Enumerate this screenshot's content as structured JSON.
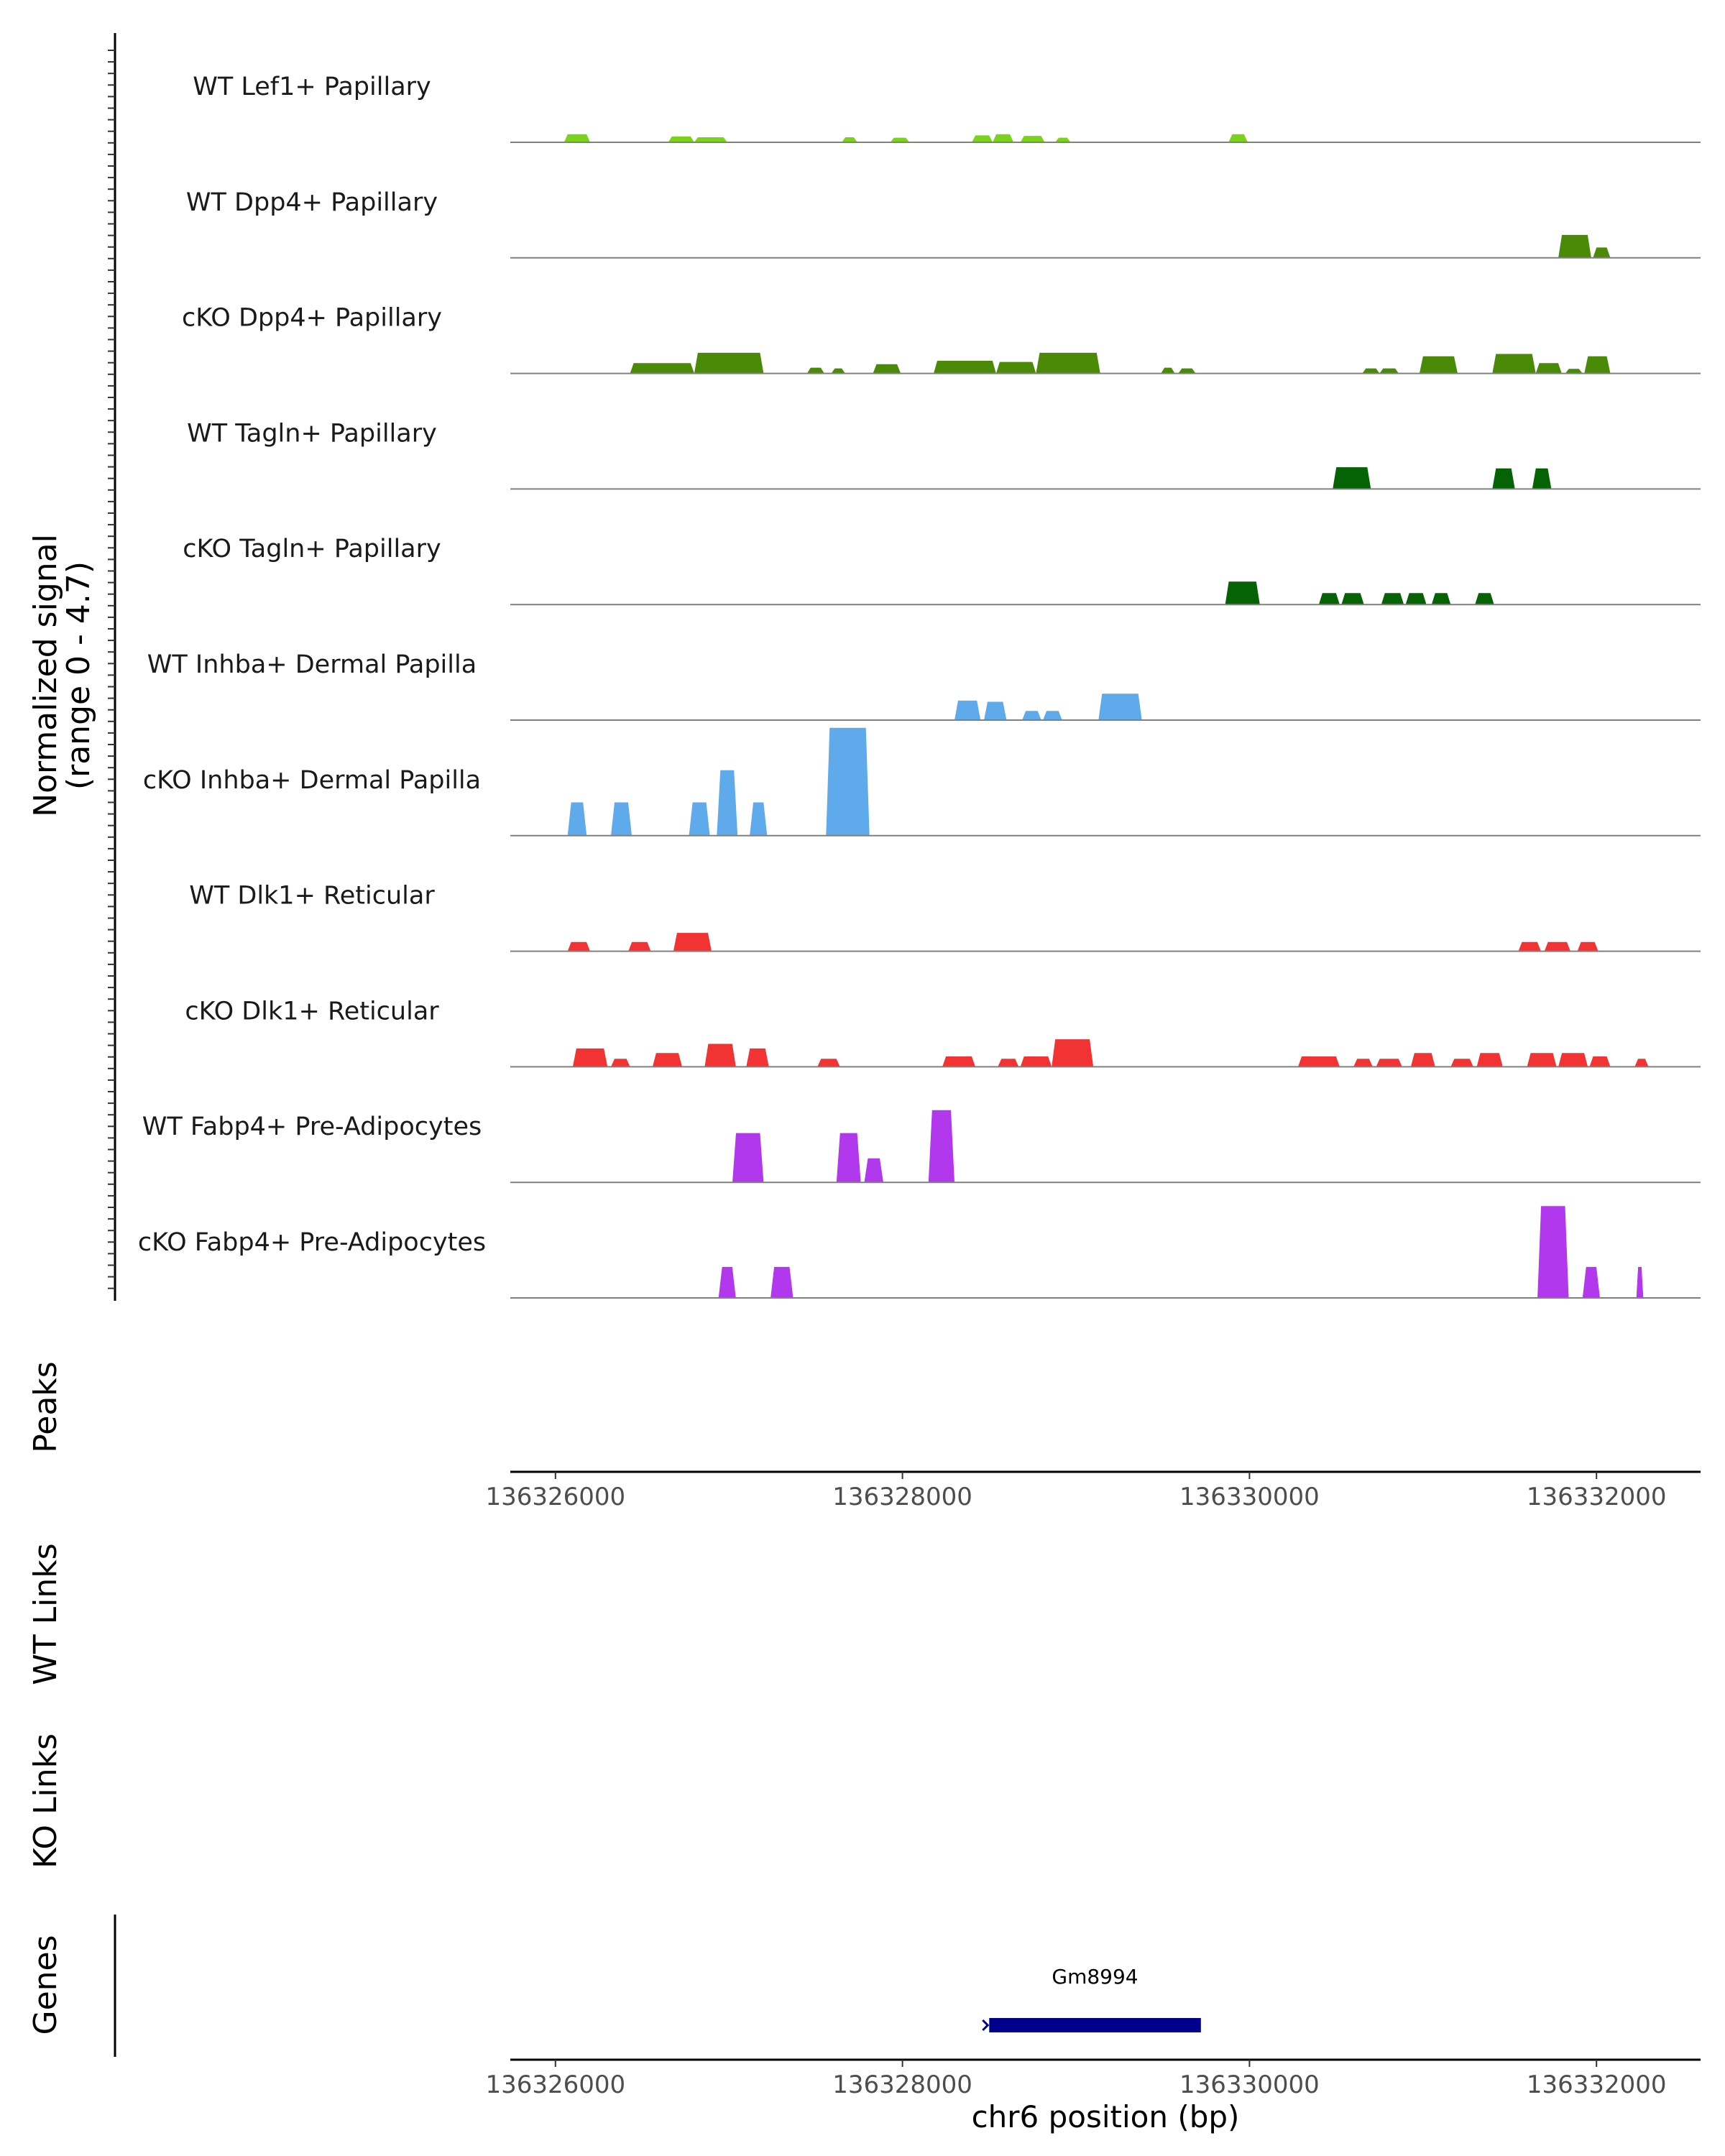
{
  "chart_data": {
    "type": "area",
    "title": "",
    "ylabel": "Normalized signal",
    "ylabel_range": "(range 0 - 4.7)",
    "ylim": [
      0,
      4.7
    ],
    "xlim": [
      136325740,
      136332600
    ],
    "xlabel": "chr6 position (bp)",
    "xticks": [
      136326000,
      136328000,
      136330000,
      136332000
    ],
    "xtick_labels": [
      "136326000",
      "136328000",
      "136330000",
      "136332000"
    ],
    "tracks": [
      {
        "name": "WT Lef1+ Papillary",
        "color": "#7ad21a",
        "peaks": [
          [
            136326050,
            136326200,
            0.35
          ],
          [
            136326650,
            136326800,
            0.25
          ],
          [
            136326800,
            136326990,
            0.22
          ],
          [
            136327650,
            136327740,
            0.22
          ],
          [
            136327930,
            136328040,
            0.2
          ],
          [
            136328400,
            136328520,
            0.3
          ],
          [
            136328520,
            136328640,
            0.35
          ],
          [
            136328680,
            136328820,
            0.28
          ],
          [
            136328880,
            136328970,
            0.2
          ],
          [
            136329880,
            136329990,
            0.35
          ]
        ]
      },
      {
        "name": "WT Dpp4+ Papillary",
        "color": "#4a8a06",
        "peaks": [
          [
            136331780,
            136331970,
            1.0
          ],
          [
            136331980,
            136332080,
            0.45
          ]
        ]
      },
      {
        "name": "cKO Dpp4+ Papillary",
        "color": "#4a8a06",
        "peaks": [
          [
            136326430,
            136326800,
            0.45
          ],
          [
            136326800,
            136327200,
            0.9
          ],
          [
            136327450,
            136327550,
            0.25
          ],
          [
            136327590,
            136327670,
            0.22
          ],
          [
            136327830,
            136327990,
            0.4
          ],
          [
            136328180,
            136328540,
            0.55
          ],
          [
            136328540,
            136328770,
            0.5
          ],
          [
            136328770,
            136329140,
            0.9
          ],
          [
            136329490,
            136329570,
            0.25
          ],
          [
            136329590,
            136329690,
            0.22
          ],
          [
            136330650,
            136330750,
            0.22
          ],
          [
            136330750,
            136330860,
            0.22
          ],
          [
            136330980,
            136331200,
            0.75
          ],
          [
            136331400,
            136331650,
            0.85
          ],
          [
            136331650,
            136331800,
            0.45
          ],
          [
            136331820,
            136331920,
            0.2
          ],
          [
            136331930,
            136332080,
            0.75
          ]
        ]
      },
      {
        "name": "WT Tagln+ Papillary",
        "color": "#056205",
        "peaks": [
          [
            136330480,
            136330700,
            0.95
          ],
          [
            136331400,
            136331530,
            0.9
          ],
          [
            136331630,
            136331740,
            0.9
          ]
        ]
      },
      {
        "name": "cKO Tagln+ Papillary",
        "color": "#056205",
        "peaks": [
          [
            136329860,
            136330060,
            1.0
          ],
          [
            136330400,
            136330520,
            0.5
          ],
          [
            136330530,
            136330660,
            0.5
          ],
          [
            136330760,
            136330890,
            0.5
          ],
          [
            136330900,
            136331020,
            0.5
          ],
          [
            136331050,
            136331160,
            0.5
          ],
          [
            136331300,
            136331410,
            0.5
          ]
        ]
      },
      {
        "name": "WT Inhba+ Dermal Papilla",
        "color": "#5eaaeb",
        "peaks": [
          [
            136328300,
            136328450,
            0.85
          ],
          [
            136328470,
            136328600,
            0.8
          ],
          [
            136328690,
            136328800,
            0.4
          ],
          [
            136328810,
            136328920,
            0.4
          ],
          [
            136329130,
            136329380,
            1.15
          ]
        ]
      },
      {
        "name": "cKO Inhba+ Dermal Papilla",
        "color": "#5eaaeb",
        "peaks": [
          [
            136326070,
            136326180,
            1.45
          ],
          [
            136326320,
            136326440,
            1.45
          ],
          [
            136326770,
            136326890,
            1.45
          ],
          [
            136326930,
            136327050,
            2.85
          ],
          [
            136327120,
            136327220,
            1.45
          ],
          [
            136327560,
            136327810,
            4.7
          ]
        ]
      },
      {
        "name": "WT Dlk1+ Reticular",
        "color": "#f23333",
        "peaks": [
          [
            136326070,
            136326200,
            0.4
          ],
          [
            136326420,
            136326550,
            0.4
          ],
          [
            136326680,
            136326900,
            0.8
          ],
          [
            136331550,
            136331680,
            0.4
          ],
          [
            136331700,
            136331850,
            0.4
          ],
          [
            136331890,
            136332010,
            0.4
          ]
        ]
      },
      {
        "name": "cKO Dlk1+ Reticular",
        "color": "#f23333",
        "peaks": [
          [
            136326100,
            136326300,
            0.8
          ],
          [
            136326320,
            136326430,
            0.35
          ],
          [
            136326560,
            136326730,
            0.6
          ],
          [
            136326860,
            136327040,
            1.0
          ],
          [
            136327100,
            136327230,
            0.8
          ],
          [
            136327510,
            136327640,
            0.35
          ],
          [
            136328230,
            136328420,
            0.45
          ],
          [
            136328550,
            136328670,
            0.35
          ],
          [
            136328680,
            136328860,
            0.45
          ],
          [
            136328860,
            136329100,
            1.2
          ],
          [
            136330280,
            136330520,
            0.45
          ],
          [
            136330600,
            136330710,
            0.35
          ],
          [
            136330730,
            136330880,
            0.35
          ],
          [
            136330930,
            136331070,
            0.6
          ],
          [
            136331160,
            136331290,
            0.35
          ],
          [
            136331310,
            136331460,
            0.6
          ],
          [
            136331600,
            136331770,
            0.6
          ],
          [
            136331780,
            136331950,
            0.6
          ],
          [
            136331960,
            136332080,
            0.45
          ],
          [
            136332220,
            136332300,
            0.35
          ]
        ]
      },
      {
        "name": "WT Fabp4+ Pre-Adipocytes",
        "color": "#b138ec",
        "peaks": [
          [
            136327020,
            136327200,
            2.15
          ],
          [
            136327620,
            136327760,
            2.15
          ],
          [
            136327780,
            136327890,
            1.05
          ],
          [
            136328150,
            136328300,
            3.15
          ]
        ]
      },
      {
        "name": "cKO Fabp4+ Pre-Adipocytes",
        "color": "#b138ec",
        "peaks": [
          [
            136326940,
            136327040,
            1.35
          ],
          [
            136327240,
            136327370,
            1.35
          ],
          [
            136331660,
            136331840,
            4.0
          ],
          [
            136331920,
            136332020,
            1.35
          ],
          [
            136332230,
            136332270,
            1.35
          ]
        ]
      }
    ],
    "side_labels": [
      "Peaks",
      "WT Links",
      "KO Links",
      "Genes"
    ],
    "genes": [
      {
        "name": "Gm8994",
        "start": 136328500,
        "end": 136329720
      }
    ]
  }
}
